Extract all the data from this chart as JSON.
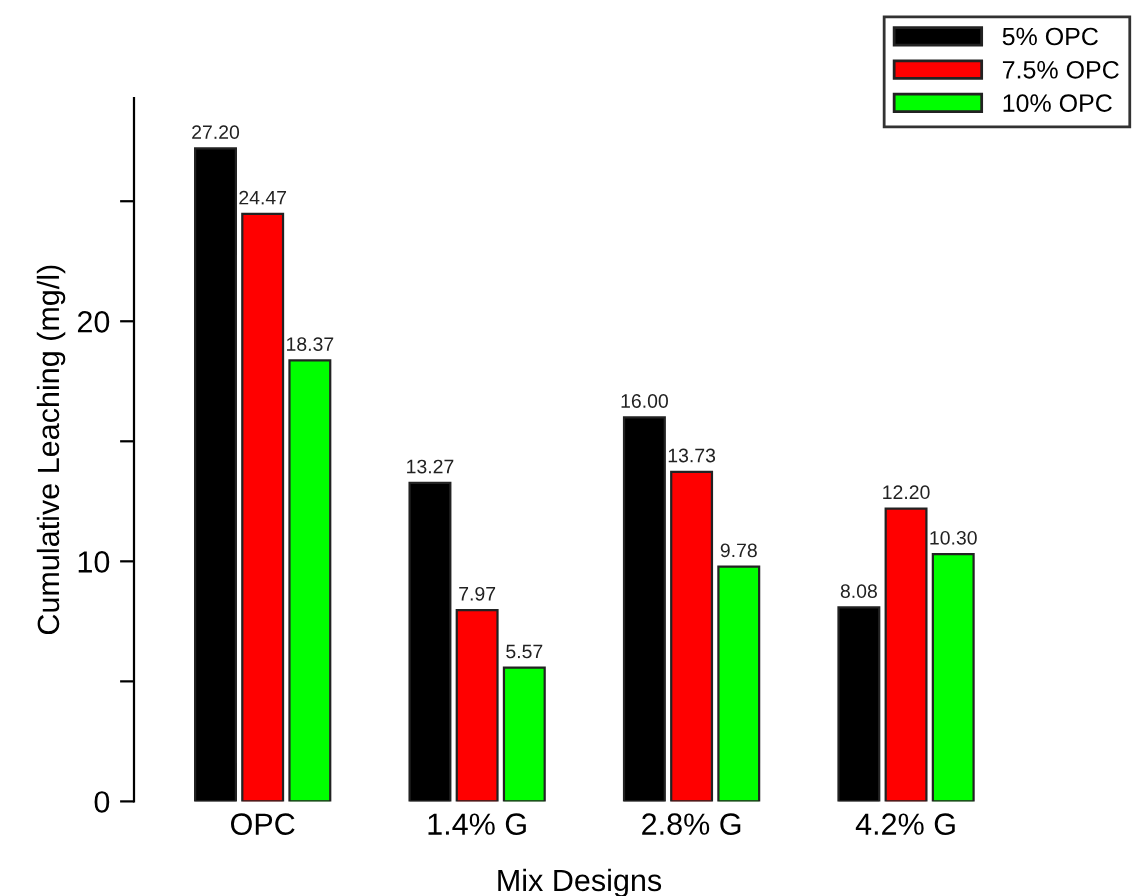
{
  "chart_data": {
    "type": "bar",
    "xlabel": "Mix Designs",
    "ylabel": "Cumulative Leaching (mg/l)",
    "categories": [
      "OPC",
      "1.4% G",
      "2.8% G",
      "4.2% G"
    ],
    "series": [
      {
        "name": "5% OPC",
        "color": "#000000",
        "values": [
          27.2,
          13.27,
          16.0,
          8.08
        ],
        "value_labels": [
          "27.20",
          "13.27",
          "16.00",
          "8.08"
        ]
      },
      {
        "name": "7.5% OPC",
        "color": "#ff0000",
        "values": [
          24.47,
          7.97,
          13.73,
          12.2
        ],
        "value_labels": [
          "24.47",
          "7.97",
          "13.73",
          "12.20"
        ]
      },
      {
        "name": "10% OPC",
        "color": "#00ff00",
        "values": [
          18.37,
          5.57,
          9.78,
          10.3
        ],
        "value_labels": [
          "18.37",
          "5.57",
          "9.78",
          "10.30"
        ]
      }
    ],
    "ylim": [
      0,
      29.3
    ],
    "yticks": [
      0,
      {
        "value": 5,
        "label": null
      },
      10,
      {
        "value": 15,
        "label": null
      },
      20,
      {
        "value": 25,
        "label": null
      }
    ],
    "legend": "top right",
    "grid": false
  }
}
